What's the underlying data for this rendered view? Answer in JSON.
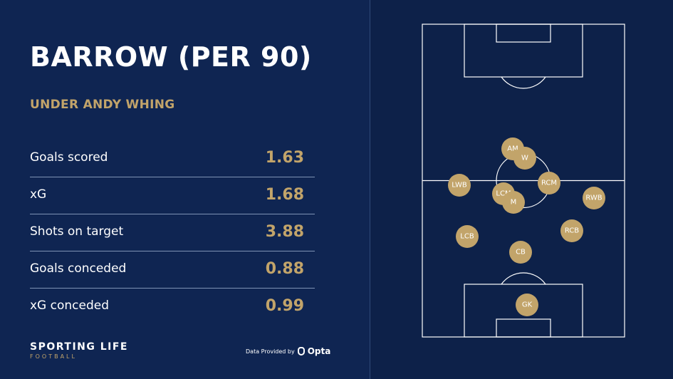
{
  "header": {
    "title": "BARROW (PER 90)",
    "subtitle": "UNDER ANDY WHING"
  },
  "stats": [
    {
      "label": "Goals scored",
      "value": "1.63"
    },
    {
      "label": "xG",
      "value": "1.68"
    },
    {
      "label": "Shots on target",
      "value": "3.88"
    },
    {
      "label": "Goals conceded",
      "value": "0.88"
    },
    {
      "label": "xG conceded",
      "value": "0.99"
    }
  ],
  "footer": {
    "brand": "SPORTING LIFE",
    "brand_sub": "FOOTBALL",
    "provider_text": "Data Provided by",
    "provider_logo": "Opta"
  },
  "colors": {
    "background": "#0e2450",
    "accent_gold": "#c2a46a",
    "text": "#ffffff",
    "pitch_lines": "#ffffff"
  },
  "formation": {
    "players": [
      {
        "label": "AM"
      },
      {
        "label": "W"
      },
      {
        "label": "LWB"
      },
      {
        "label": "RCM"
      },
      {
        "label": "LCM"
      },
      {
        "label": "M"
      },
      {
        "label": "RWB"
      },
      {
        "label": "LCB"
      },
      {
        "label": "RCB"
      },
      {
        "label": "CB"
      },
      {
        "label": "GK"
      }
    ]
  }
}
